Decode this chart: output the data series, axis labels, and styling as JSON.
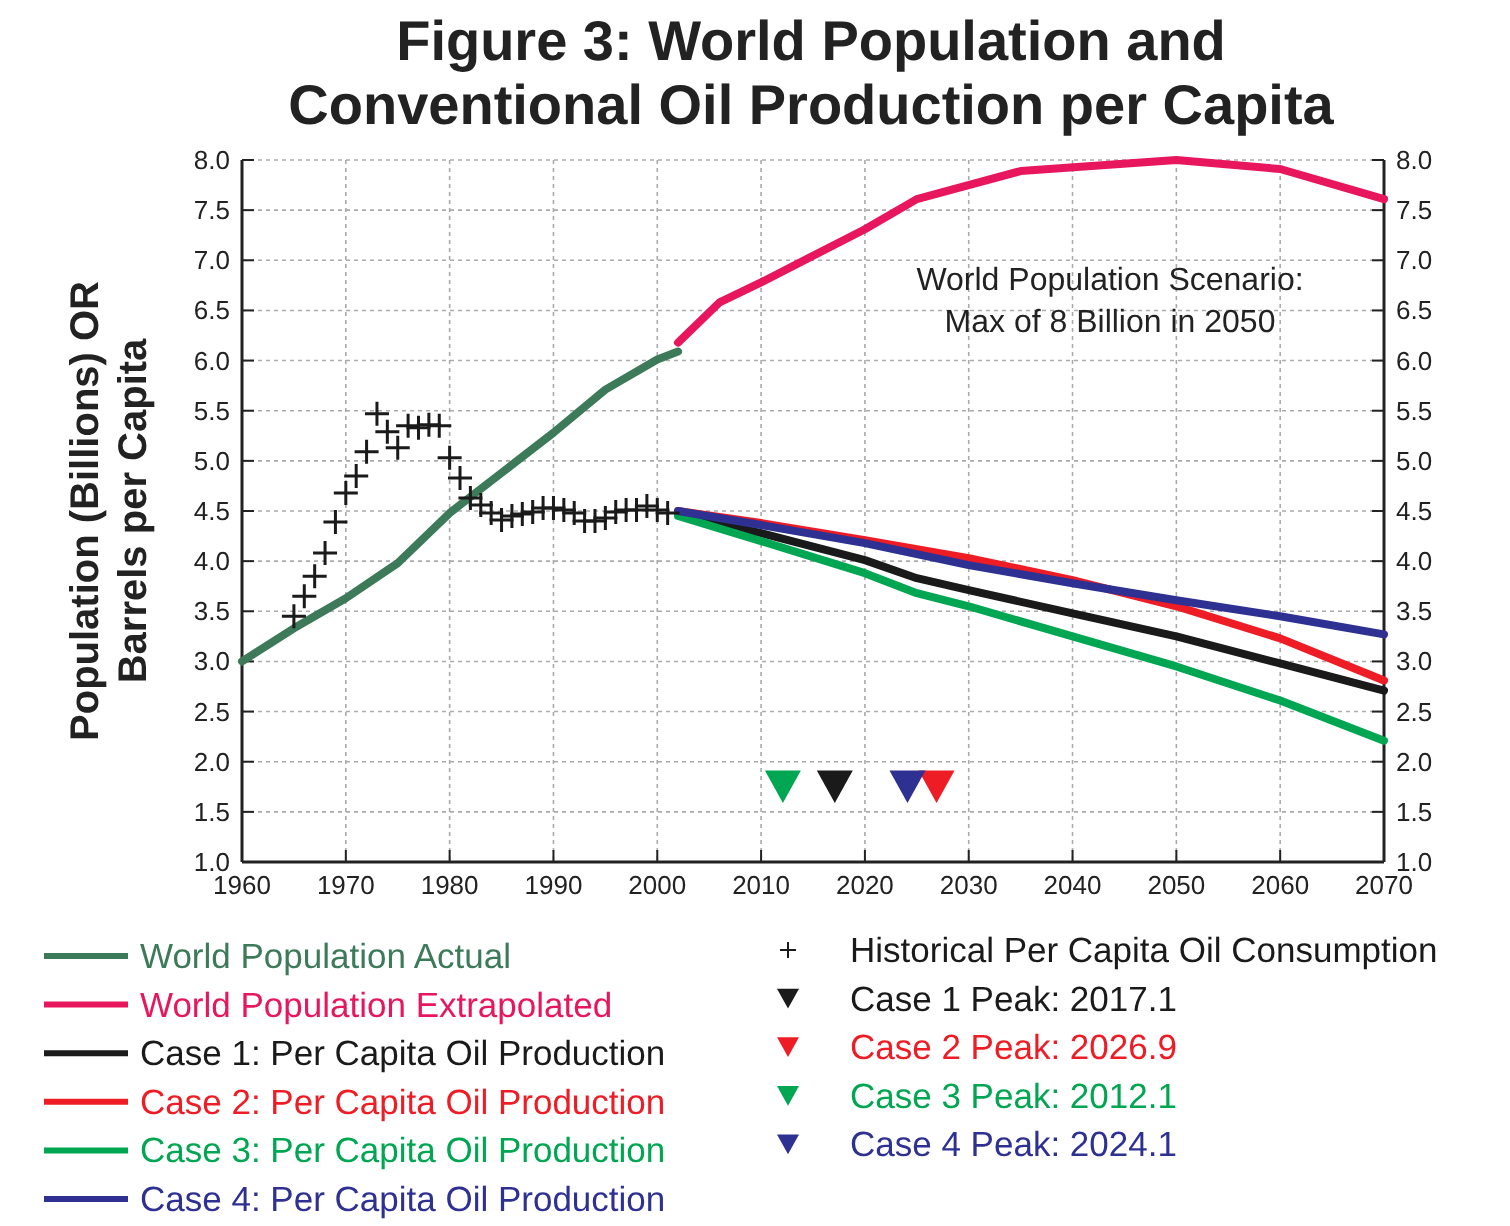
{
  "chart_data": {
    "type": "line",
    "title": "Figure 3: World Population and Conventional Oil Production per Capita",
    "ylabel": "Population (Billions) OR Barrels per Capita",
    "annotations": [
      "World Population Scenario: Max of 8 Billion in 2050"
    ],
    "xlim": [
      1960,
      2070
    ],
    "xticks": [
      1960,
      1970,
      1980,
      1990,
      2000,
      2010,
      2020,
      2030,
      2040,
      2050,
      2060,
      2070
    ],
    "ylim": [
      1.0,
      8.0
    ],
    "yticks": [
      {
        "value": 1,
        "label": "1.0"
      },
      {
        "value": 1.5,
        "label": "1.5"
      },
      {
        "value": 2,
        "label": "2.0"
      },
      {
        "value": 2.5,
        "label": "2.5"
      },
      {
        "value": 3,
        "label": "3.0"
      },
      {
        "value": 3.5,
        "label": "3.5"
      },
      {
        "value": 4,
        "label": "4.0"
      },
      {
        "value": 4.5,
        "label": "4.5"
      },
      {
        "value": 5,
        "label": "5.0"
      },
      {
        "value": 5.5,
        "label": "5.5"
      },
      {
        "value": 6,
        "label": "6.0"
      },
      {
        "value": 6.5,
        "label": "6.5"
      },
      {
        "value": 7,
        "label": "7.0"
      },
      {
        "value": 7.5,
        "label": "7.5"
      },
      {
        "value": 8,
        "label": "8.0"
      }
    ],
    "y2lim": [
      1.0,
      8.0
    ],
    "y2ticks": [
      {
        "value": 1,
        "label": "1.0"
      },
      {
        "value": 1.5,
        "label": "1.5"
      },
      {
        "value": 2,
        "label": "2.0"
      },
      {
        "value": 2.5,
        "label": "2.5"
      },
      {
        "value": 3,
        "label": "3.0"
      },
      {
        "value": 3.5,
        "label": "3.5"
      },
      {
        "value": 4,
        "label": "4.0"
      },
      {
        "value": 4.5,
        "label": "4.5"
      },
      {
        "value": 5,
        "label": "5.0"
      },
      {
        "value": 5.5,
        "label": "5.5"
      },
      {
        "value": 6,
        "label": "6.0"
      },
      {
        "value": 6.5,
        "label": "6.5"
      },
      {
        "value": 7,
        "label": "7.0"
      },
      {
        "value": 7.5,
        "label": "7.5"
      },
      {
        "value": 8,
        "label": "8.0"
      }
    ],
    "grid": true,
    "legend": "bottom",
    "line_style": "solid",
    "series": [
      {
        "name": "World Population Actual",
        "color": "#3d7a5a",
        "x": [
          1960,
          1965,
          1970,
          1975,
          1980,
          1985,
          1990,
          1995,
          2000,
          2002
        ],
        "values": [
          3.0,
          3.33,
          3.63,
          3.98,
          4.48,
          4.88,
          5.28,
          5.71,
          6.01,
          6.09
        ]
      },
      {
        "name": "World Population Extrapolated",
        "color": "#e8175d",
        "x": [
          2002,
          2006,
          2010,
          2020,
          2025,
          2035,
          2050,
          2060,
          2070
        ],
        "values": [
          6.18,
          6.58,
          6.78,
          7.31,
          7.61,
          7.89,
          8.0,
          7.91,
          7.61
        ]
      },
      {
        "name": "Case 1: Per Capita Oil Production",
        "color": "#1a1a1a",
        "x": [
          2002,
          2010,
          2020,
          2025,
          2030,
          2040,
          2050,
          2060,
          2070
        ],
        "values": [
          4.47,
          4.28,
          4.01,
          3.83,
          3.71,
          3.48,
          3.25,
          2.98,
          2.71
        ]
      },
      {
        "name": "Case 2: Per Capita Oil Production",
        "color": "#ee1c25",
        "x": [
          2002,
          2010,
          2020,
          2030,
          2040,
          2050,
          2060,
          2070
        ],
        "values": [
          4.5,
          4.38,
          4.21,
          4.03,
          3.81,
          3.55,
          3.23,
          2.81
        ]
      },
      {
        "name": "Case 3: Per Capita Oil Production",
        "color": "#00a651",
        "x": [
          2002,
          2010,
          2020,
          2025,
          2030,
          2040,
          2050,
          2060,
          2070
        ],
        "values": [
          4.45,
          4.2,
          3.88,
          3.68,
          3.55,
          3.25,
          2.95,
          2.61,
          2.21
        ]
      },
      {
        "name": "Case 4: Per Capita Oil Production",
        "color": "#2e3192",
        "x": [
          2002,
          2010,
          2020,
          2030,
          2040,
          2050,
          2060,
          2070
        ],
        "values": [
          4.5,
          4.36,
          4.18,
          3.96,
          3.78,
          3.61,
          3.45,
          3.27
        ]
      },
      {
        "name": "Historical Per Capita Oil Consumption",
        "type": "scatter",
        "marker": "cross",
        "color": "#1a1a1a",
        "x": [
          1965,
          1966,
          1967,
          1968,
          1969,
          1970,
          1971,
          1972,
          1973,
          1974,
          1975,
          1976,
          1977,
          1978,
          1979,
          1980,
          1981,
          1982,
          1983,
          1984,
          1985,
          1986,
          1987,
          1988,
          1989,
          1990,
          1991,
          1992,
          1993,
          1994,
          1995,
          1996,
          1997,
          1998,
          1999,
          2000,
          2001
        ],
        "values": [
          3.45,
          3.65,
          3.85,
          4.08,
          4.39,
          4.68,
          4.85,
          5.09,
          5.47,
          5.29,
          5.13,
          5.35,
          5.33,
          5.36,
          5.35,
          5.03,
          4.83,
          4.63,
          4.56,
          4.48,
          4.41,
          4.45,
          4.47,
          4.49,
          4.53,
          4.53,
          4.51,
          4.48,
          4.4,
          4.4,
          4.43,
          4.49,
          4.51,
          4.51,
          4.55,
          4.51,
          4.48
        ]
      },
      {
        "name": "Case 1 Peak: 2017.1",
        "type": "scatter",
        "marker": "triangle",
        "color": "#1a1a1a",
        "x": [
          2017.1
        ],
        "values": [
          1.75
        ]
      },
      {
        "name": "Case 2 Peak: 2026.9",
        "type": "scatter",
        "marker": "triangle",
        "color": "#ee1c25",
        "x": [
          2026.9
        ],
        "values": [
          1.75
        ]
      },
      {
        "name": "Case 3 Peak: 2012.1",
        "type": "scatter",
        "marker": "triangle",
        "color": "#00a651",
        "x": [
          2012.1
        ],
        "values": [
          1.75
        ]
      },
      {
        "name": "Case 4 Peak: 2024.1",
        "type": "scatter",
        "marker": "triangle",
        "color": "#2e3192",
        "x": [
          2024.1
        ],
        "values": [
          1.75
        ]
      }
    ]
  }
}
